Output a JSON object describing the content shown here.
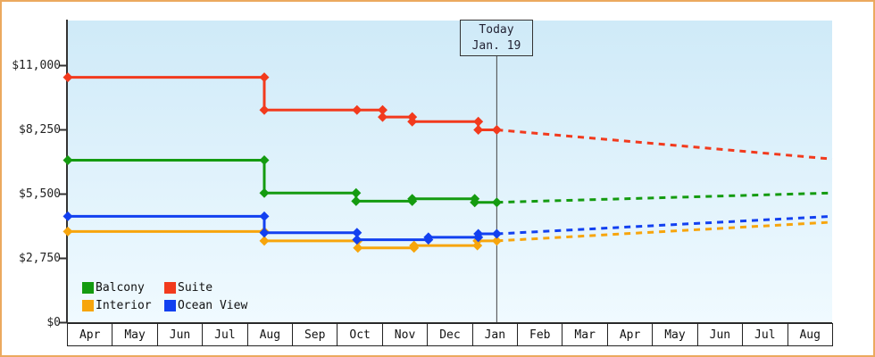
{
  "window": {
    "background": "#ffffff",
    "border_color": "#eba95f"
  },
  "chart_data": {
    "type": "line",
    "title": "",
    "xlabel": "",
    "ylabel": "",
    "x_unit": "months from Apr (left edge), each month = 1 unit",
    "x_months_total": 17,
    "x_labels": [
      "Apr",
      "May",
      "Jun",
      "Jul",
      "Aug",
      "Sep",
      "Oct",
      "Nov",
      "Dec",
      "Jan",
      "Feb",
      "Mar",
      "Apr",
      "May",
      "Jun",
      "Jul",
      "Aug"
    ],
    "ylim": [
      0,
      12900
    ],
    "y_ticks": [
      {
        "value": 0,
        "label": "$0"
      },
      {
        "value": 2750,
        "label": "$2,750"
      },
      {
        "value": 5500,
        "label": "$5,500"
      },
      {
        "value": 8250,
        "label": "$8,250"
      },
      {
        "value": 11000,
        "label": "$11,000"
      }
    ],
    "grid": false,
    "plot_bg_top": "#cfeaf8",
    "plot_bg_bottom": "#f0faff",
    "axis_color": "#333333",
    "today_marker": {
      "line1": "Today",
      "line2": "Jan. 19",
      "x_month_units": 9.54,
      "line_color": "#444444"
    },
    "series": [
      {
        "name": "Interior",
        "color": "#f7a50c",
        "points": [
          [
            0,
            3900
          ],
          [
            4.37,
            3900
          ],
          [
            4.37,
            3500
          ],
          [
            6.45,
            3500
          ],
          [
            6.45,
            3200
          ],
          [
            7.7,
            3200
          ],
          [
            7.7,
            3300
          ],
          [
            9.11,
            3300
          ],
          [
            9.11,
            3500
          ],
          [
            9.54,
            3500
          ]
        ],
        "forecast_to": [
          17,
          4300
        ]
      },
      {
        "name": "Ocean View",
        "color": "#1240f0",
        "points": [
          [
            0,
            4550
          ],
          [
            4.37,
            4550
          ],
          [
            4.37,
            3850
          ],
          [
            6.43,
            3850
          ],
          [
            6.43,
            3550
          ],
          [
            8.02,
            3550
          ],
          [
            8.02,
            3650
          ],
          [
            9.13,
            3650
          ],
          [
            9.13,
            3800
          ],
          [
            9.54,
            3800
          ]
        ],
        "forecast_to": [
          17,
          4550
        ]
      },
      {
        "name": "Balcony",
        "color": "#149b10",
        "points": [
          [
            0,
            6950
          ],
          [
            4.37,
            6950
          ],
          [
            4.37,
            5550
          ],
          [
            6.41,
            5550
          ],
          [
            6.41,
            5200
          ],
          [
            7.66,
            5200
          ],
          [
            7.66,
            5300
          ],
          [
            9.05,
            5300
          ],
          [
            9.05,
            5150
          ],
          [
            9.54,
            5150
          ]
        ],
        "forecast_to": [
          17,
          5550
        ]
      },
      {
        "name": "Suite",
        "color": "#f23a1d",
        "points": [
          [
            0,
            10500
          ],
          [
            4.37,
            10500
          ],
          [
            4.37,
            9100
          ],
          [
            6.43,
            9100
          ],
          [
            7.0,
            9100
          ],
          [
            7.0,
            8800
          ],
          [
            7.66,
            8800
          ],
          [
            7.66,
            8600
          ],
          [
            9.13,
            8600
          ],
          [
            9.13,
            8250
          ],
          [
            9.54,
            8250
          ]
        ],
        "forecast_to": [
          17,
          7000
        ]
      }
    ],
    "legend_order": [
      "Balcony",
      "Suite",
      "Interior",
      "Ocean View"
    ],
    "legend_position": "bottom-left-inside"
  }
}
